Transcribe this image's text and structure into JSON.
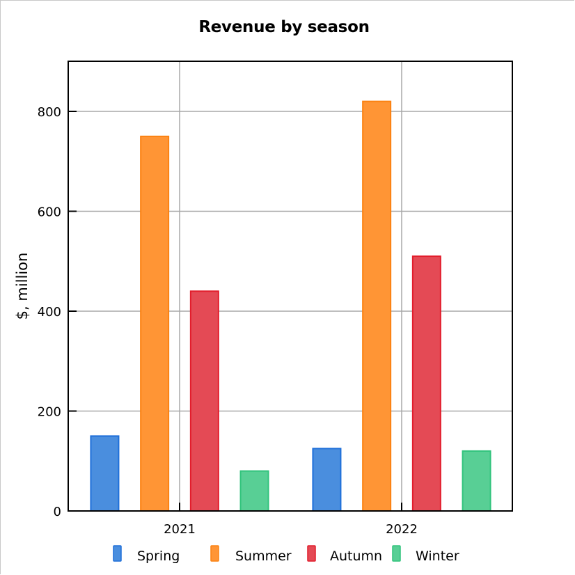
{
  "chart_data": {
    "type": "bar",
    "title": "Revenue by season",
    "xlabel": "",
    "ylabel": "$, million",
    "categories": [
      "2021",
      "2022"
    ],
    "series": [
      {
        "name": "Spring",
        "values": [
          150,
          125
        ],
        "color": "#4a8ede",
        "border": "#1e6fd9"
      },
      {
        "name": "Summer",
        "values": [
          750,
          820
        ],
        "color": "#ff9535",
        "border": "#fb8212"
      },
      {
        "name": "Autumn",
        "values": [
          440,
          510
        ],
        "color": "#e44a55",
        "border": "#e21d2c"
      },
      {
        "name": "Winter",
        "values": [
          80,
          120
        ],
        "color": "#58cf95",
        "border": "#31c37c"
      }
    ],
    "ylim": [
      0,
      900
    ],
    "yticks": [
      0,
      200,
      400,
      600,
      800
    ],
    "grid": true,
    "legend_position": "bottom"
  }
}
